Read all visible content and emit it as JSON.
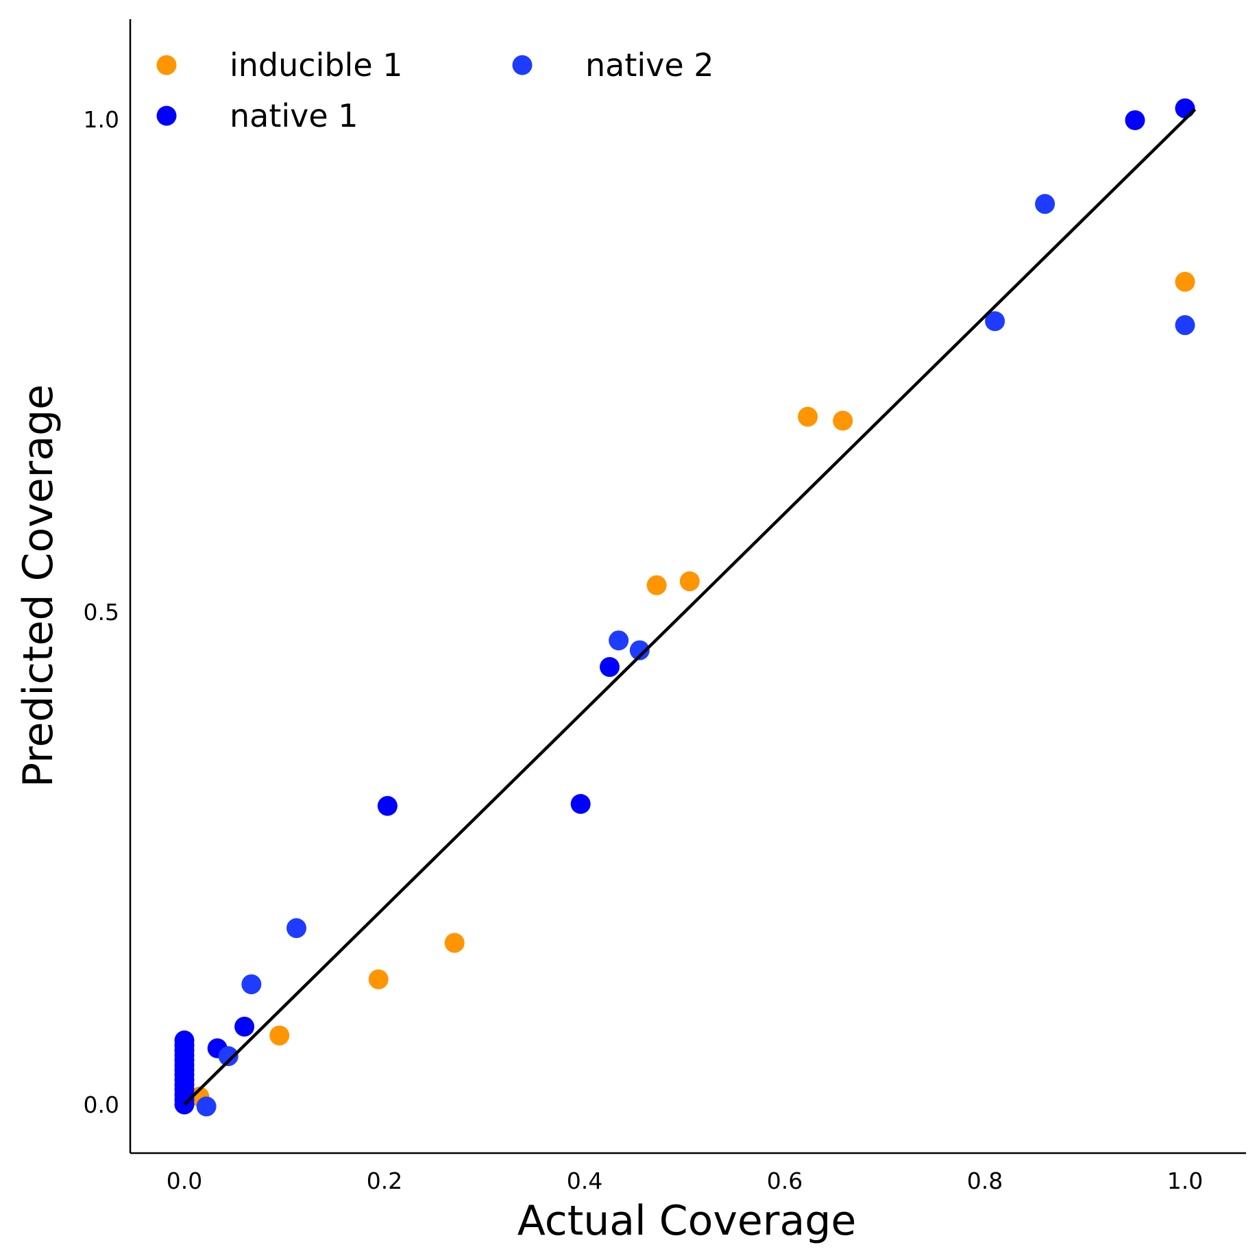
{
  "chart_data": {
    "type": "scatter",
    "title": "",
    "xlabel": "Actual Coverage",
    "ylabel": "Predicted Coverage",
    "xlim": [
      -0.055,
      1.06
    ],
    "ylim": [
      -0.05,
      1.1
    ],
    "xticks": [
      "0.0",
      "0.2",
      "0.4",
      "0.6",
      "0.8",
      "1.0"
    ],
    "yticks": [
      "0.0",
      "0.5",
      "1.0"
    ],
    "grid": false,
    "legend": {
      "position": "upper-left",
      "columns": 2
    },
    "reference_line": {
      "from": [
        0.0,
        0.0
      ],
      "to": [
        1.01,
        1.01
      ],
      "color": "#000000"
    },
    "series": [
      {
        "name": "inducible 1",
        "color": "#ff9500",
        "points": [
          [
            0.015,
            0.008
          ],
          [
            0.095,
            0.07
          ],
          [
            0.194,
            0.127
          ],
          [
            0.27,
            0.164
          ],
          [
            0.472,
            0.527
          ],
          [
            0.505,
            0.531
          ],
          [
            0.623,
            0.698
          ],
          [
            0.658,
            0.694
          ],
          [
            1.0,
            0.835
          ]
        ]
      },
      {
        "name": "native 1",
        "color": "#0000ff",
        "points": [
          [
            0.0,
            0.0
          ],
          [
            0.0,
            0.005
          ],
          [
            0.0,
            0.01
          ],
          [
            0.0,
            0.015
          ],
          [
            0.0,
            0.02
          ],
          [
            0.0,
            0.025
          ],
          [
            0.0,
            0.03
          ],
          [
            0.0,
            0.035
          ],
          [
            0.0,
            0.04
          ],
          [
            0.0,
            0.045
          ],
          [
            0.0,
            0.05
          ],
          [
            0.0,
            0.055
          ],
          [
            0.0,
            0.06
          ],
          [
            0.0,
            0.065
          ],
          [
            0.033,
            0.057
          ],
          [
            0.06,
            0.079
          ],
          [
            0.203,
            0.303
          ],
          [
            0.396,
            0.305
          ],
          [
            0.425,
            0.444
          ],
          [
            0.95,
            0.999
          ],
          [
            1.0,
            1.011
          ]
        ]
      },
      {
        "name": "native 2",
        "color": "#1e3cff",
        "points": [
          [
            0.022,
            -0.002
          ],
          [
            0.044,
            0.049
          ],
          [
            0.067,
            0.122
          ],
          [
            0.112,
            0.179
          ],
          [
            0.434,
            0.471
          ],
          [
            0.455,
            0.461
          ],
          [
            0.81,
            0.795
          ],
          [
            0.86,
            0.914
          ],
          [
            1.0,
            0.791
          ]
        ]
      }
    ]
  }
}
